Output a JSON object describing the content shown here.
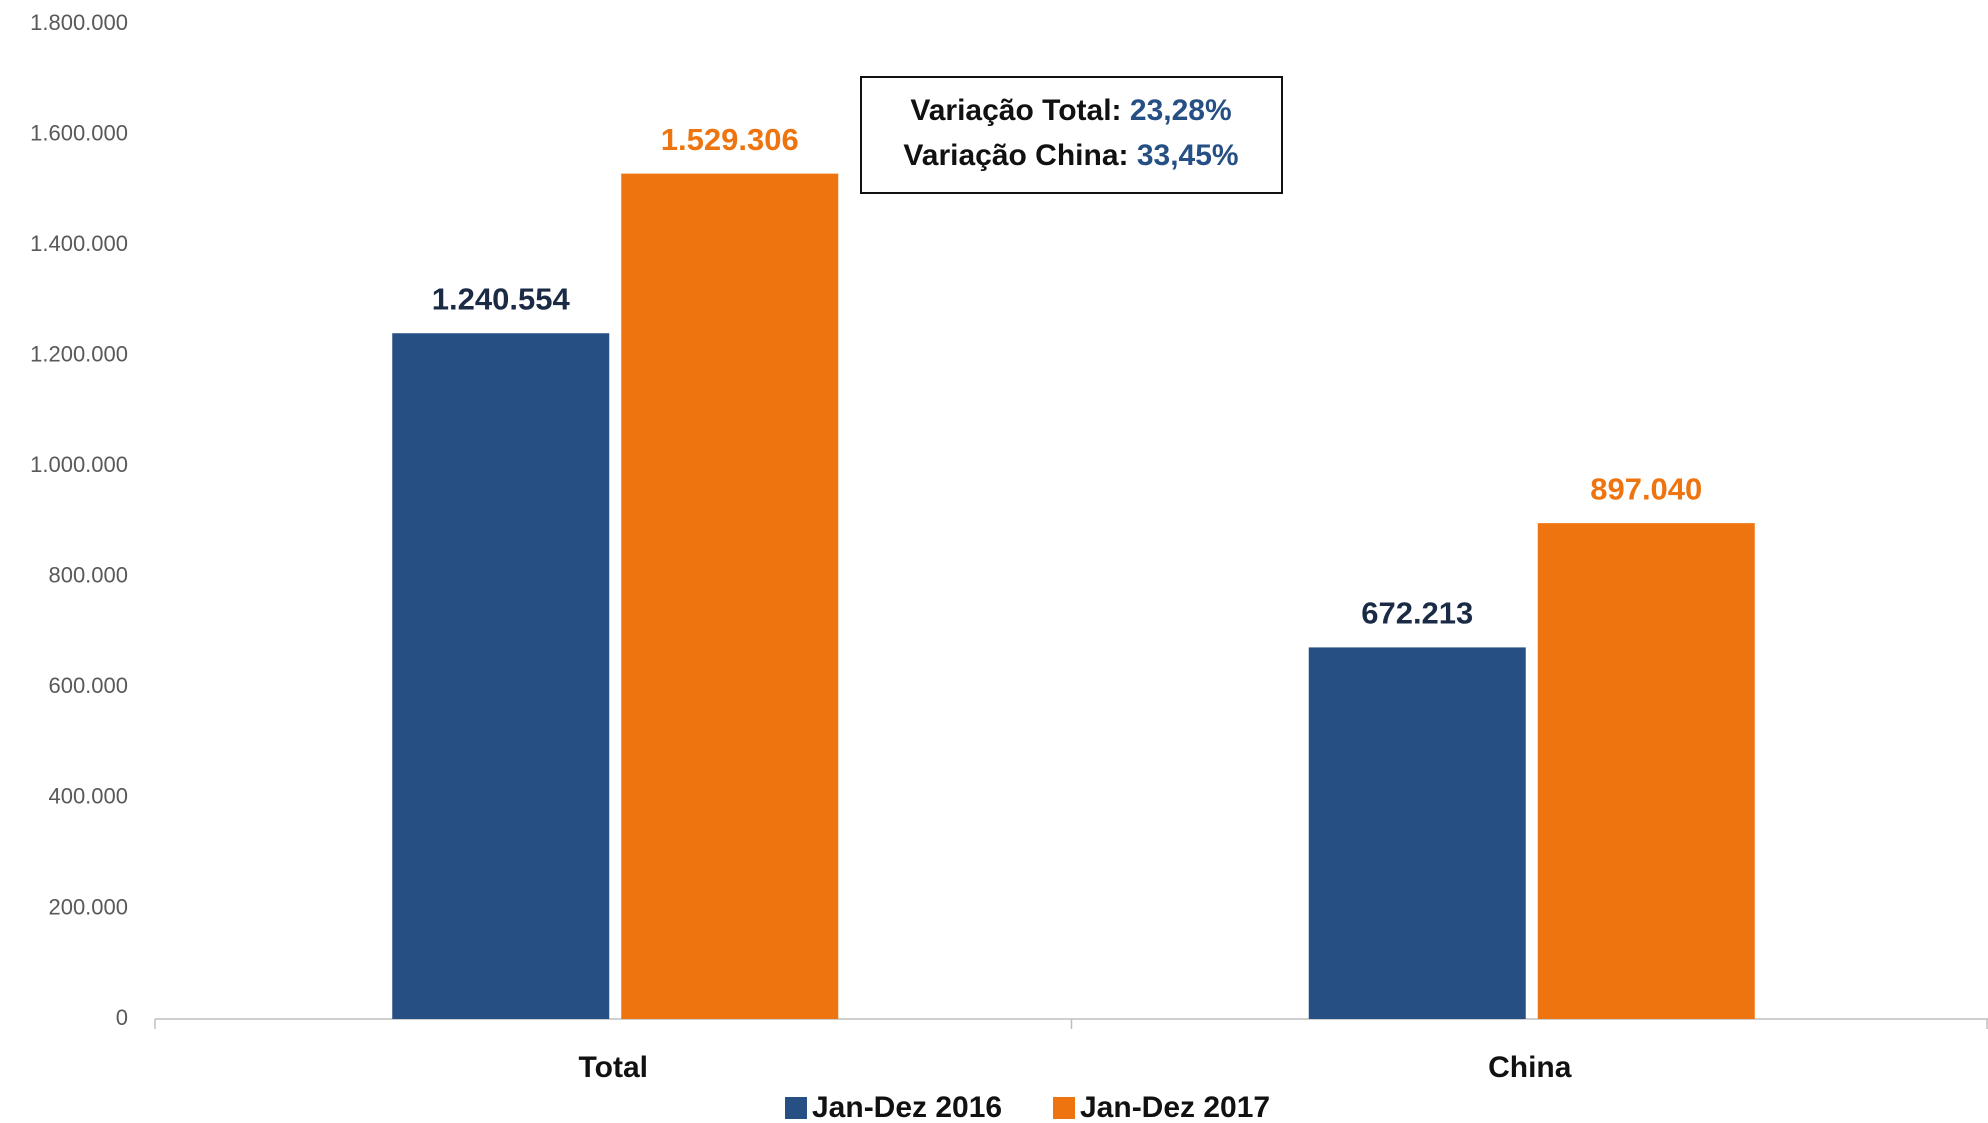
{
  "chart_data": {
    "type": "bar",
    "categories": [
      "Total",
      "China"
    ],
    "series": [
      {
        "name": "Jan-Dez 2016",
        "color": "#264f84",
        "label_color": "#1c2b45",
        "values": [
          1240554,
          672213
        ],
        "value_labels": [
          "1.240.554",
          "672.213"
        ]
      },
      {
        "name": "Jan-Dez 2017",
        "color": "#ee7410",
        "label_color": "#ee7410",
        "values": [
          1529306,
          897040
        ],
        "value_labels": [
          "1.529.306",
          "897.040"
        ]
      }
    ],
    "ylim": [
      0,
      1800000
    ],
    "yticks": [
      0,
      {
        "value": 200000,
        "label": "200.000"
      },
      {
        "value": 400000,
        "label": "400.000"
      },
      {
        "value": 600000,
        "label": "600.000"
      },
      {
        "value": 800000,
        "label": "800.000"
      },
      {
        "value": 1000000,
        "label": "1.000.000"
      },
      {
        "value": 1200000,
        "label": "1.200.000"
      },
      {
        "value": 1400000,
        "label": "1.400.000"
      },
      {
        "value": 1600000,
        "label": "1.600.000"
      },
      {
        "value": 1800000,
        "label": "1.800.000"
      }
    ],
    "grid": false,
    "legend": "bottom",
    "annotation": [
      {
        "label": "Variação Total:",
        "value": "23,28%"
      },
      {
        "label": "Variação China:",
        "value": "33,45%"
      }
    ]
  }
}
